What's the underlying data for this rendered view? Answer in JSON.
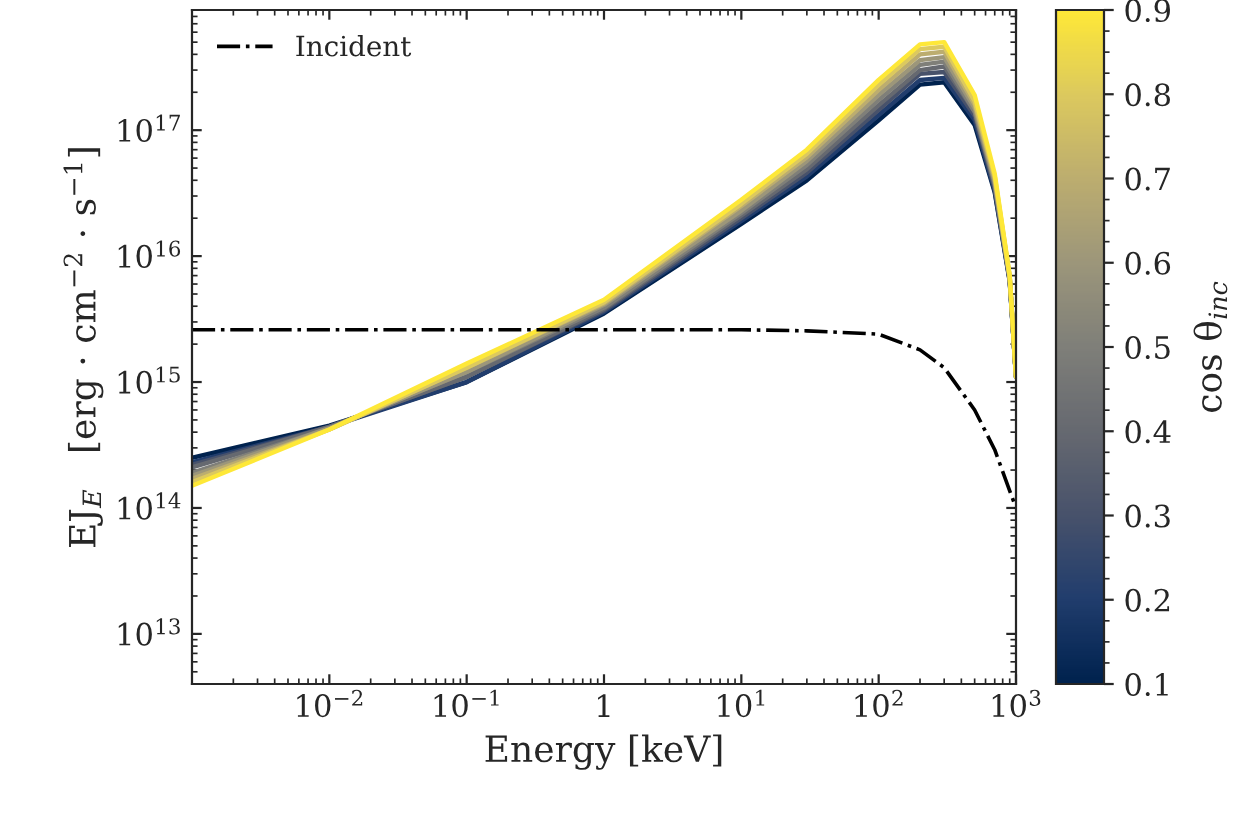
{
  "chart_data": {
    "type": "line",
    "xlabel": "Energy [keV]",
    "ylabel": "EJ$_{E}$   [erg · cm$^{−2}$ · s$^{−1}$]",
    "clabel": "cos θ$_{inc}$",
    "x": [
      0.001,
      0.01,
      0.1,
      1,
      10,
      30,
      100,
      200,
      300,
      500,
      700,
      900,
      1000
    ],
    "series": [
      {
        "color": "#00224e",
        "values": [
          250000000000000.0,
          450000000000000.0,
          1000000000000000.0,
          3500000000000000.0,
          1.8e+16,
          4e+16,
          1.2e+17,
          2.3e+17,
          2.4e+17,
          1.1e+17,
          3.2e+16,
          6300000000000000.0,
          1100000000000000.0
        ]
      },
      {
        "color": "#213d6d",
        "values": [
          230000000000000.0,
          440000000000000.0,
          1000000000000000.0,
          3600000000000000.0,
          1.9e+16,
          4.3e+16,
          1.32e+17,
          2.5e+17,
          2.6e+17,
          1.2e+17,
          3.3e+16,
          6400000000000000.0,
          1100000000000000.0
        ]
      },
      {
        "color": "#48526b",
        "values": [
          220000000000000.0,
          440000000000000.0,
          1100000000000000.0,
          3700000000000000.0,
          2e+16,
          4.6e+16,
          1.45e+17,
          2.8e+17,
          2.9e+17,
          1.3e+17,
          3.5e+16,
          6500000000000000.0,
          1100000000000000.0
        ]
      },
      {
        "color": "#666970",
        "values": [
          210000000000000.0,
          440000000000000.0,
          1100000000000000.0,
          3800000000000000.0,
          2.1e+16,
          4.9e+16,
          1.58e+17,
          3e+17,
          3.2e+17,
          1.4e+17,
          3.6e+16,
          6500000000000000.0,
          1100000000000000.0
        ]
      },
      {
        "color": "#7f7f79",
        "values": [
          190000000000000.0,
          430000000000000.0,
          1200000000000000.0,
          3900000000000000.0,
          2.2e+16,
          5.3e+16,
          1.74e+17,
          3.3e+17,
          3.5e+17,
          1.4e+17,
          3.8e+16,
          6600000000000000.0,
          1100000000000000.0
        ]
      },
      {
        "color": "#9c967a",
        "values": [
          180000000000000.0,
          430000000000000.0,
          1200000000000000.0,
          4100000000000000.0,
          2.3e+16,
          5.7e+16,
          1.91e+17,
          3.6e+17,
          3.8e+17,
          1.5e+17,
          3.9e+16,
          6700000000000000.0,
          1100000000000000.0
        ]
      },
      {
        "color": "#bcad6f",
        "values": [
          170000000000000.0,
          420000000000000.0,
          1300000000000000.0,
          4200000000000000.0,
          2.5e+16,
          6.1e+16,
          2.09e+17,
          4e+17,
          4.2e+17,
          1.6e+17,
          4.1e+16,
          6800000000000000.0,
          1100000000000000.0
        ]
      },
      {
        "color": "#dcc95e",
        "values": [
          160000000000000.0,
          420000000000000.0,
          1300000000000000.0,
          4300000000000000.0,
          2.6e+16,
          6.5e+16,
          2.29e+17,
          4.4e+17,
          4.6e+17,
          1.7e+17,
          4.3e+16,
          6900000000000000.0,
          1100000000000000.0
        ]
      },
      {
        "color": "#fee838",
        "values": [
          150000000000000.0,
          420000000000000.0,
          1400000000000000.0,
          4500000000000000.0,
          2.8e+16,
          7e+16,
          2.51e+17,
          4.8e+17,
          5e+17,
          1.9e+17,
          4.5e+16,
          7000000000000000.0,
          1100000000000000.0
        ]
      },
      {
        "name": "Incident",
        "color": "#000000",
        "line_style": "dashdot",
        "x": [
          0.001,
          0.01,
          0.1,
          1,
          10,
          30,
          100,
          200,
          300,
          500,
          700,
          1000
        ],
        "values": [
          2600000000000000.0,
          2600000000000000.0,
          2600000000000000.0,
          2600000000000000.0,
          2600000000000000.0,
          2550000000000000.0,
          2400000000000000.0,
          1800000000000000.0,
          1300000000000000.0,
          600000000000000.0,
          290000000000000.0,
          100000000000000.0
        ]
      }
    ],
    "log": "xy",
    "xlim": [
      0.001,
      1000
    ],
    "ylim": [
      4000000000000.0,
      9e+17
    ],
    "xticks": [
      {
        "value": 0.01,
        "label": "10$^{−2}$"
      },
      {
        "value": 0.1,
        "label": "10$^{−1}$"
      },
      1,
      {
        "value": 10,
        "label": "10$^{1}$"
      },
      {
        "value": 100,
        "label": "10$^{2}$"
      },
      {
        "value": 1000,
        "label": "10$^{3}$"
      }
    ],
    "yticks": [
      {
        "value": 10000000000000.0,
        "label": "10$^{13}$"
      },
      {
        "value": 100000000000000.0,
        "label": "10$^{14}$"
      },
      {
        "value": 1000000000000000.0,
        "label": "10$^{15}$"
      },
      {
        "value": 1e+16,
        "label": "10$^{16}$"
      },
      {
        "value": 1e+17,
        "label": "10$^{17}$"
      }
    ],
    "clim": [
      0.1,
      0.9
    ],
    "cticks": [
      0.1,
      0.2,
      0.3,
      0.4,
      0.5,
      0.6,
      0.7,
      0.8,
      0.9
    ],
    "legend": "top left",
    "grid": false
  }
}
